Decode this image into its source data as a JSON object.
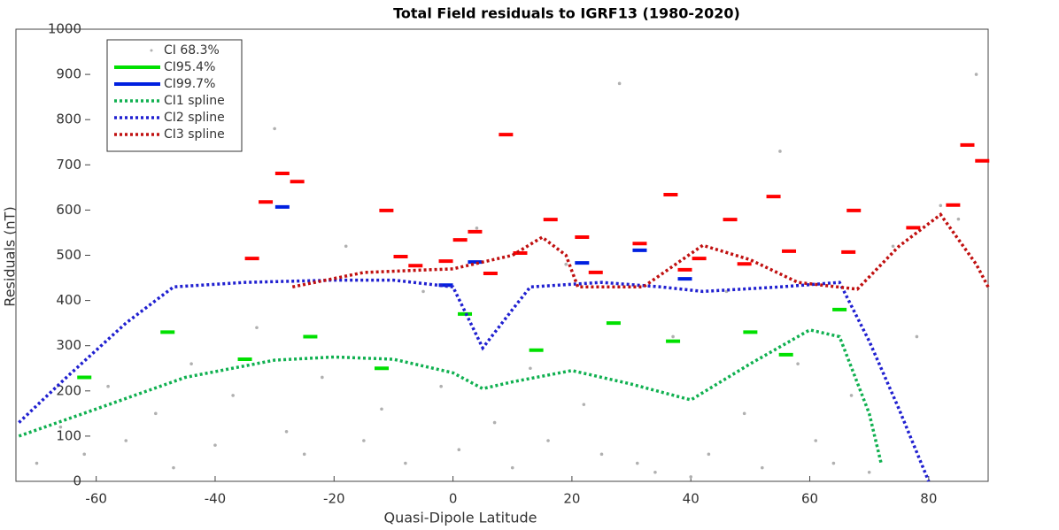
{
  "chart_data": {
    "type": "scatter",
    "title": "Total Field residuals to IGRF13 (1980-2020)",
    "x_label": "Quasi-Dipole Latitude",
    "y_label": "Residuals (nT)",
    "xlim": [
      -73.5,
      90
    ],
    "ylim": [
      0,
      1000
    ],
    "xticks": [
      -60,
      -40,
      -20,
      0,
      20,
      40,
      60,
      80
    ],
    "yticks": [
      0,
      100,
      200,
      300,
      400,
      500,
      600,
      700,
      800,
      900,
      1000
    ],
    "legend": "upper left",
    "series": [
      {
        "name": "CI 68.3%",
        "style": "dots",
        "color": "#b0b0b0",
        "x": [
          -70,
          -66,
          -62,
          -58,
          -55,
          -50,
          -47,
          -44,
          -40,
          -37,
          -33,
          -30,
          -28,
          -25,
          -22,
          -18,
          -15,
          -12,
          -8,
          -5,
          -2,
          1,
          4,
          7,
          10,
          13,
          16,
          19,
          22,
          25,
          28,
          31,
          34,
          37,
          40,
          43,
          46,
          49,
          52,
          55,
          58,
          61,
          64,
          67,
          70,
          74,
          78,
          82,
          85,
          88
        ],
        "values": [
          40,
          120,
          60,
          210,
          90,
          150,
          30,
          260,
          80,
          190,
          340,
          780,
          110,
          60,
          230,
          520,
          90,
          160,
          40,
          420,
          210,
          70,
          560,
          130,
          30,
          250,
          90,
          480,
          170,
          60,
          880,
          40,
          20,
          320,
          10,
          60,
          420,
          150,
          30,
          730,
          260,
          90,
          40,
          190,
          20,
          520,
          320,
          610,
          580,
          900
        ]
      },
      {
        "name": "CI95.4%",
        "style": "dash",
        "color": "#00e000",
        "x": [
          -62,
          -48,
          -35,
          -24,
          -12,
          2,
          14,
          27,
          37,
          50,
          56,
          65
        ],
        "values": [
          230,
          330,
          270,
          320,
          250,
          370,
          290,
          350,
          310,
          330,
          280,
          380
        ]
      },
      {
        "name": "CI99.7%",
        "style": "dash",
        "color": "#0020e0",
        "x": [
          -28.7,
          -1.2,
          3.7,
          21.7,
          31.4,
          39
        ],
        "values": [
          607,
          434,
          485,
          483,
          511,
          448
        ]
      },
      {
        "style": "dash",
        "color": "#ff0000",
        "x": [
          -33.8,
          -31.5,
          -28.7,
          -26.2,
          -11.2,
          -8.8,
          -6.3,
          -1.2,
          1.2,
          3.7,
          6.3,
          8.9,
          11.3,
          16.4,
          21.7,
          24,
          31.4,
          36.6,
          39,
          41.4,
          46.6,
          49,
          53.9,
          56.5,
          66.5,
          67.4,
          77.4,
          84.1,
          86.5,
          89
        ],
        "values": [
          493,
          618,
          681,
          663,
          599,
          497,
          477,
          487,
          534,
          552,
          460,
          767,
          505,
          579,
          540,
          462,
          526,
          634,
          468,
          493,
          579,
          481,
          630,
          509,
          507,
          599,
          561,
          611,
          744,
          709
        ]
      },
      {
        "name": "CI1 spline",
        "style": "dotted",
        "color": "#10b050",
        "x": [
          -73,
          -60,
          -45,
          -30,
          -20,
          -10,
          0,
          5,
          10,
          20,
          30,
          40,
          50,
          60,
          65,
          70,
          72
        ],
        "values": [
          100,
          160,
          230,
          268,
          275,
          270,
          240,
          205,
          220,
          245,
          215,
          180,
          260,
          335,
          320,
          150,
          40
        ]
      },
      {
        "name": "CI2 spline",
        "style": "dotted",
        "color": "#2020d0",
        "x": [
          -73,
          -65,
          -55,
          -47,
          -35,
          -20,
          -10,
          0,
          5,
          10,
          13,
          25,
          35,
          42,
          55,
          65,
          70,
          75,
          80
        ],
        "values": [
          130,
          230,
          350,
          430,
          440,
          445,
          445,
          430,
          295,
          380,
          430,
          440,
          430,
          420,
          430,
          440,
          310,
          160,
          0
        ]
      },
      {
        "name": "CI3 spline",
        "style": "dotted",
        "color": "#c01010",
        "x": [
          -27,
          -15,
          0,
          10,
          15,
          19,
          21,
          32,
          42,
          50,
          58,
          68,
          75,
          82,
          88,
          90
        ],
        "values": [
          430,
          462,
          470,
          500,
          540,
          500,
          430,
          430,
          522,
          490,
          440,
          425,
          520,
          590,
          480,
          430
        ]
      }
    ]
  }
}
